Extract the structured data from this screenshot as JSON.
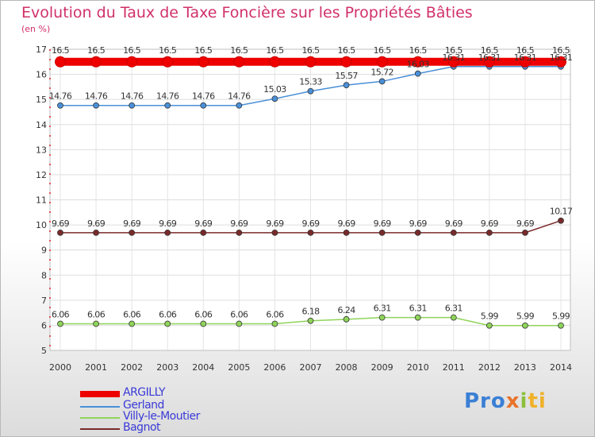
{
  "chart_data": {
    "type": "line",
    "title": "Evolution du Taux de Taxe Foncière sur les Propriétés Bâties",
    "ylabel": "(en %)",
    "ylim": [
      5,
      17
    ],
    "yticks": [
      5,
      6,
      7,
      8,
      9,
      10,
      11,
      12,
      13,
      14,
      15,
      16,
      17
    ],
    "categories": [
      "2000",
      "2001",
      "2002",
      "2003",
      "2004",
      "2005",
      "2006",
      "2007",
      "2008",
      "2009",
      "2010",
      "2011",
      "2012",
      "2013",
      "2014"
    ],
    "series": [
      {
        "name": "ARGILLY",
        "color": "#ee0000",
        "values": [
          16.5,
          16.5,
          16.5,
          16.5,
          16.5,
          16.5,
          16.5,
          16.5,
          16.5,
          16.5,
          16.5,
          16.5,
          16.5,
          16.5,
          16.5
        ],
        "labels": [
          "16.5",
          "16.5",
          "16.5",
          "16.5",
          "16.5",
          "16.5",
          "16.5",
          "16.5",
          "16.5",
          "16.5",
          "16.5",
          "16.5",
          "16.5",
          "16.5",
          "16.5"
        ]
      },
      {
        "name": "Gerland",
        "color": "#4a90d9",
        "values": [
          14.76,
          14.76,
          14.76,
          14.76,
          14.76,
          14.76,
          15.03,
          15.33,
          15.57,
          15.72,
          16.03,
          16.31,
          16.31,
          16.31,
          16.31
        ],
        "labels": [
          "14.76",
          "14.76",
          "14.76",
          "14.76",
          "14.76",
          "14.76",
          "15.03",
          "15.33",
          "15.57",
          "15.72",
          "16.03",
          "16.31",
          "16.31",
          "16.31",
          "16.31"
        ]
      },
      {
        "name": "Villy-le-Moutier",
        "color": "#8fd45a",
        "values": [
          6.06,
          6.06,
          6.06,
          6.06,
          6.06,
          6.06,
          6.06,
          6.18,
          6.24,
          6.31,
          6.31,
          6.31,
          5.99,
          5.99,
          5.99
        ],
        "labels": [
          "6.06",
          "6.06",
          "6.06",
          "6.06",
          "6.06",
          "6.06",
          "6.06",
          "6.18",
          "6.24",
          "6.31",
          "6.31",
          "6.31",
          "5.99",
          "5.99",
          "5.99"
        ]
      },
      {
        "name": "Bagnot",
        "color": "#7a2a2a",
        "values": [
          9.69,
          9.69,
          9.69,
          9.69,
          9.69,
          9.69,
          9.69,
          9.69,
          9.69,
          9.69,
          9.69,
          9.69,
          9.69,
          9.69,
          10.17
        ],
        "labels": [
          "9.69",
          "9.69",
          "9.69",
          "9.69",
          "9.69",
          "9.69",
          "9.69",
          "9.69",
          "9.69",
          "9.69",
          "9.69",
          "9.69",
          "9.69",
          "9.69",
          "10.17"
        ]
      }
    ]
  },
  "legend": [
    "ARGILLY",
    "Gerland",
    "Villy-le-Moutier",
    "Bagnot"
  ],
  "logo": {
    "p1": "Pro",
    "p2": "x",
    "p3": "i",
    "p4": "ti"
  }
}
